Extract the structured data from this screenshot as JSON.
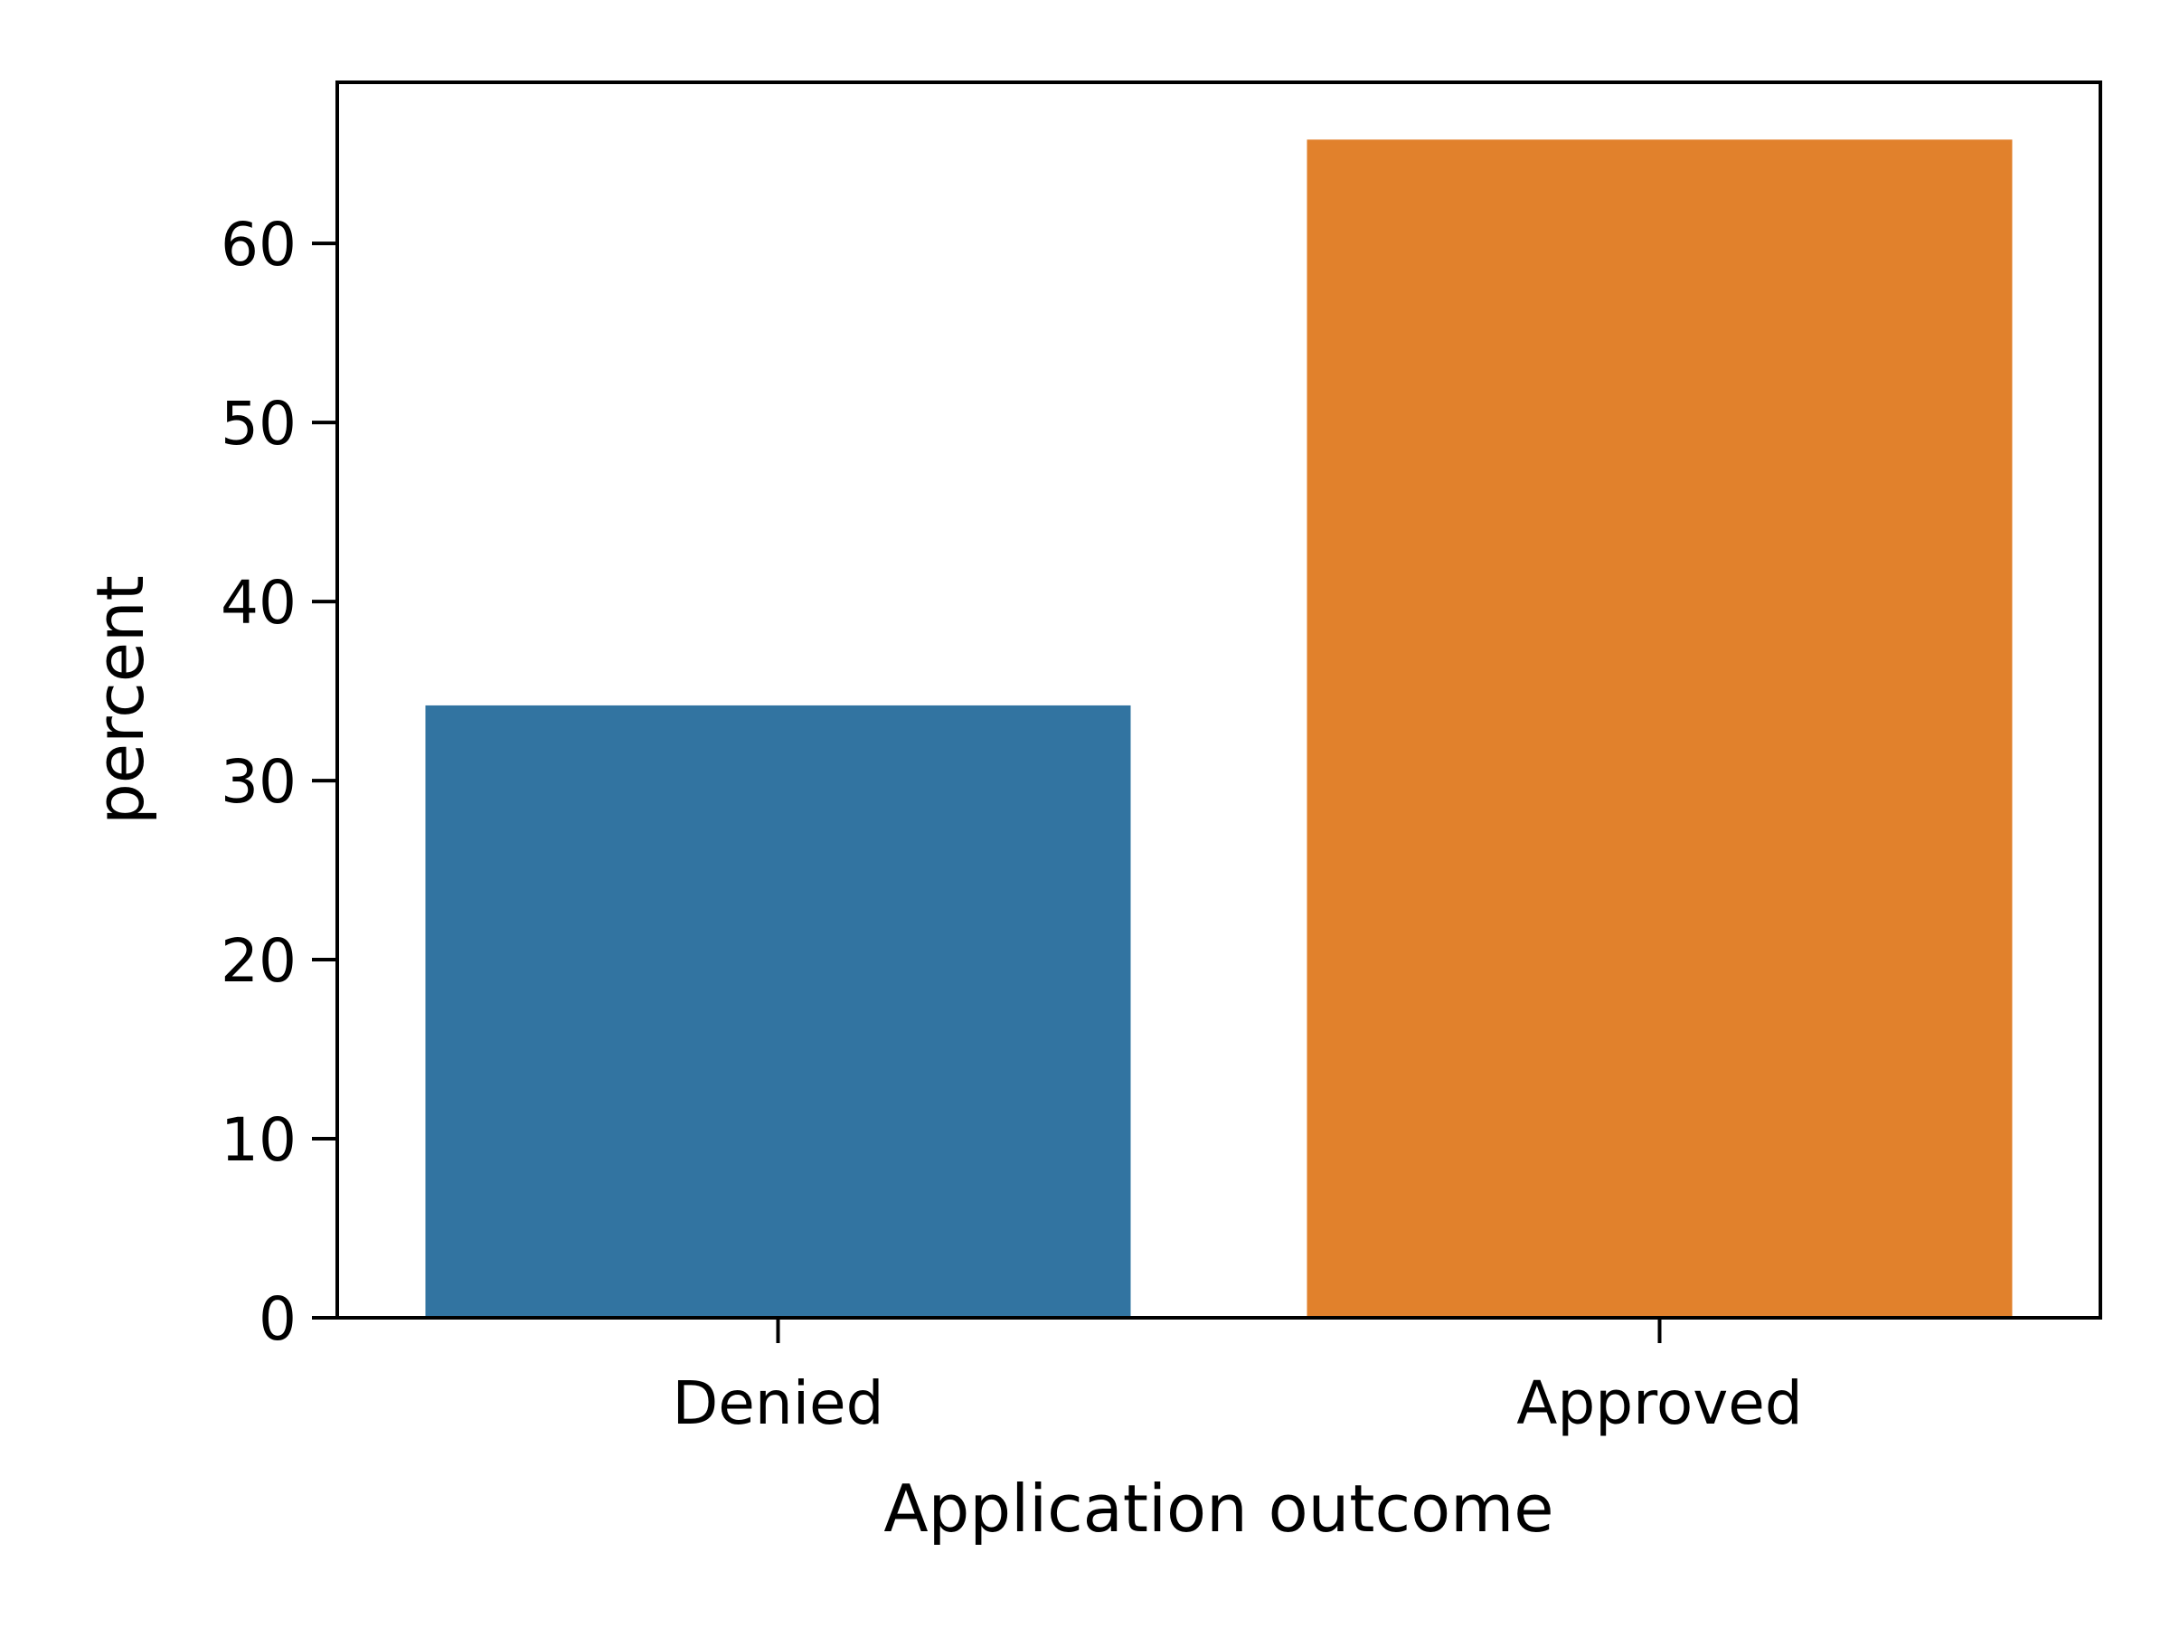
{
  "chart_data": {
    "type": "bar",
    "title": "",
    "xlabel": "Application outcome",
    "ylabel": "percent",
    "categories": [
      "Denied",
      "Approved"
    ],
    "values": [
      34.2,
      65.8
    ],
    "colors": [
      "#3274a1",
      "#e1812c"
    ],
    "ylim": [
      0,
      69
    ],
    "yticks": [
      0,
      10,
      20,
      30,
      40,
      50,
      60
    ],
    "grid": false,
    "legend": "none"
  }
}
